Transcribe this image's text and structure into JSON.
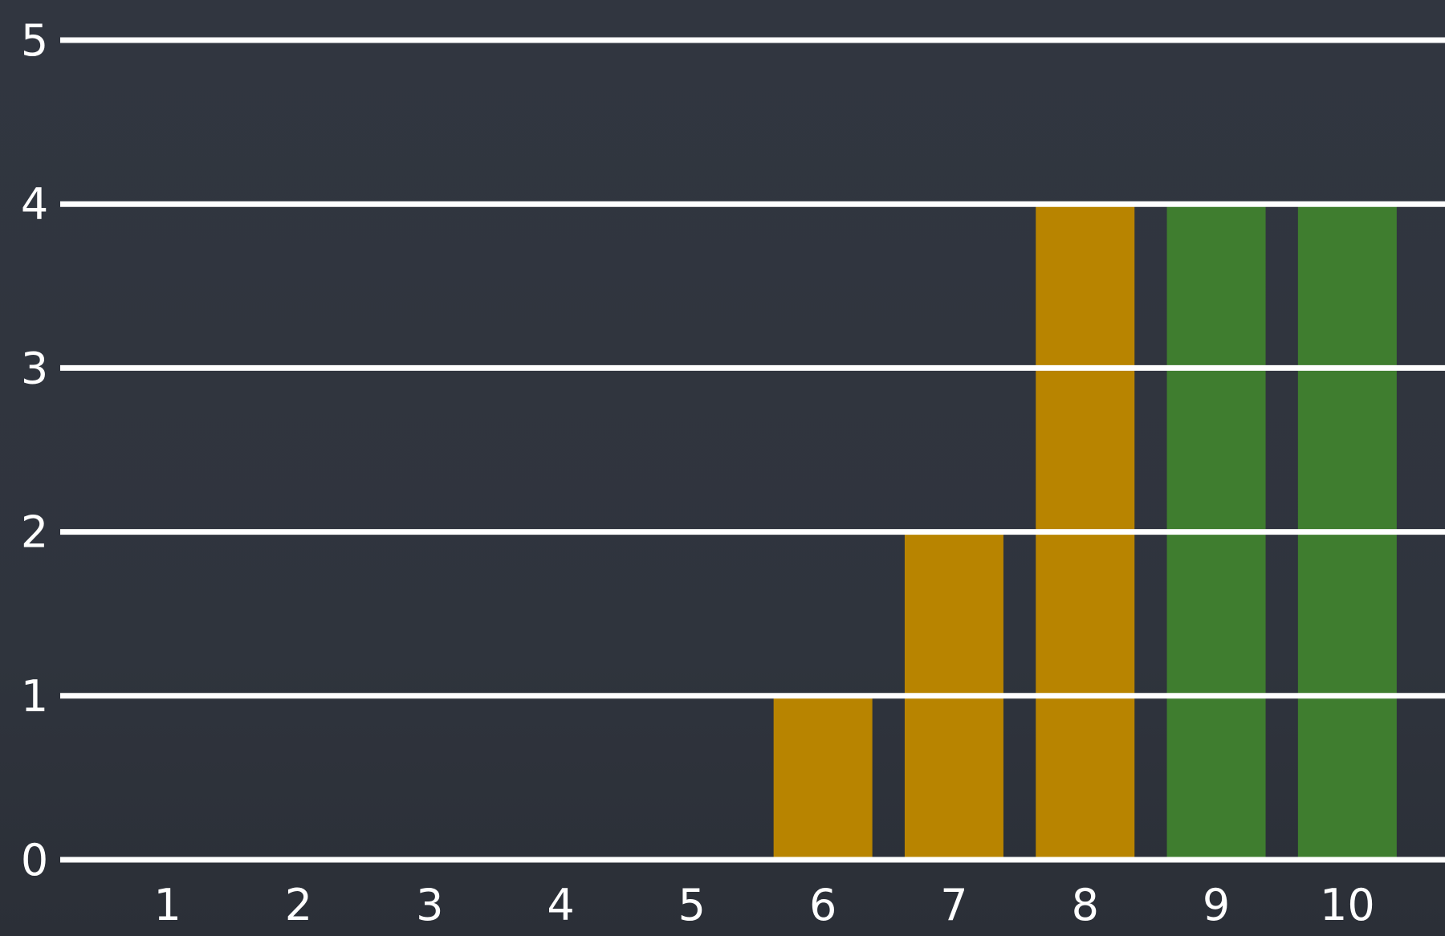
{
  "chart_data": {
    "type": "bar",
    "title": "",
    "xlabel": "",
    "ylabel": "",
    "categories": [
      "1",
      "2",
      "3",
      "4",
      "5",
      "6",
      "7",
      "8",
      "9",
      "10"
    ],
    "values": [
      0,
      0,
      0,
      0,
      0,
      1,
      2,
      4,
      4,
      4
    ],
    "bar_colors": [
      "#b88400",
      "#b88400",
      "#b88400",
      "#b88400",
      "#b88400",
      "#b88400",
      "#b88400",
      "#b88400",
      "#3f7d2f",
      "#3f7d2f"
    ],
    "ylim": [
      0,
      5
    ],
    "yticks": [
      "0",
      "1",
      "2",
      "3",
      "4",
      "5"
    ],
    "grid": true,
    "legend": null,
    "colors": {
      "background": "#2f343d",
      "gridline": "#ffffff",
      "text": "#ffffff",
      "amber": "#b88400",
      "green": "#3f7d2f"
    }
  }
}
